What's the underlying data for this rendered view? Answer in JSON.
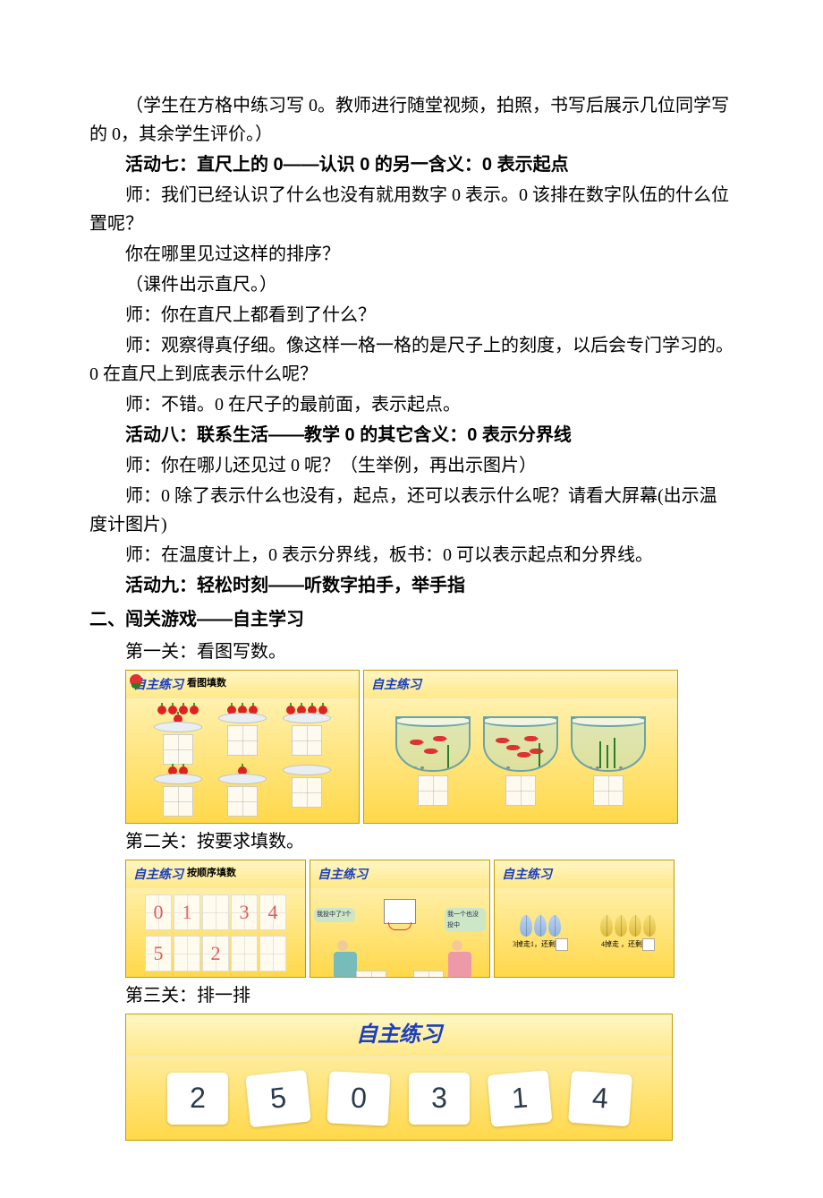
{
  "p1": "（学生在方格中练习写 0。教师进行随堂视频，拍照，书写后展示几位同学写的 0，其余学生评价。）",
  "act7_title": "活动七：直尺上的 0——认识 0 的另一含义：0 表示起点",
  "p2": "师：我们已经认识了什么也没有就用数字 0 表示。0 该排在数字队伍的什么位置呢？",
  "p3": "你在哪里见过这样的排序？",
  "p4": "（课件出示直尺。）",
  "p5": "师：你在直尺上都看到了什么？",
  "p6": "师：观察得真仔细。像这样一格一格的是尺子上的刻度，以后会专门学习的。0 在直尺上到底表示什么呢？",
  "p7": "师：不错。0 在尺子的最前面，表示起点。",
  "act8_title": "活动八：联系生活——教学 0 的其它含义：0 表示分界线",
  "p8": "师：你在哪儿还见过 0 呢？（生举例，再出示图片）",
  "p9": "师：0 除了表示什么也没有，起点，还可以表示什么呢？请看大屏幕(出示温度计图片)",
  "p10": "师：在温度计上，0 表示分界线，板书：0 可以表示起点和分界线。",
  "act9_title": "活动九：轻松时刻——听数字拍手，举手指",
  "section2": "二、闯关游戏——自主学习",
  "lvl1": "第一关：看图写数。",
  "lvl2": "第二关：按要求填数。",
  "lvl3": "第三关：排一排",
  "thumb": {
    "zizhu": "自主练习",
    "sub_kantu": "看图填数",
    "sub_shunxu": "按顺序填数",
    "bubble_left": "我投中了3个",
    "bubble_right": "我一个也没投中",
    "leaf1": "3掉走1，还剩",
    "leaf2": "4掉走  ，还剩",
    "grid_r1": [
      "0",
      "1",
      "",
      "3",
      "4"
    ],
    "grid_r2": [
      "5",
      "",
      "2",
      "",
      ""
    ],
    "cards": [
      "2",
      "5",
      "0",
      "3",
      "1",
      "4"
    ]
  },
  "colors": {
    "page_bg": "#ffffff",
    "thumb_bg_top": "#fff6c4",
    "thumb_bg_bottom": "#ffd84a",
    "title_color": "#1a3fbf",
    "apple": "#d22",
    "bowl_border": "#6aa4a6",
    "num_color": "#e05a5a",
    "card_text": "#2b3a4a"
  }
}
